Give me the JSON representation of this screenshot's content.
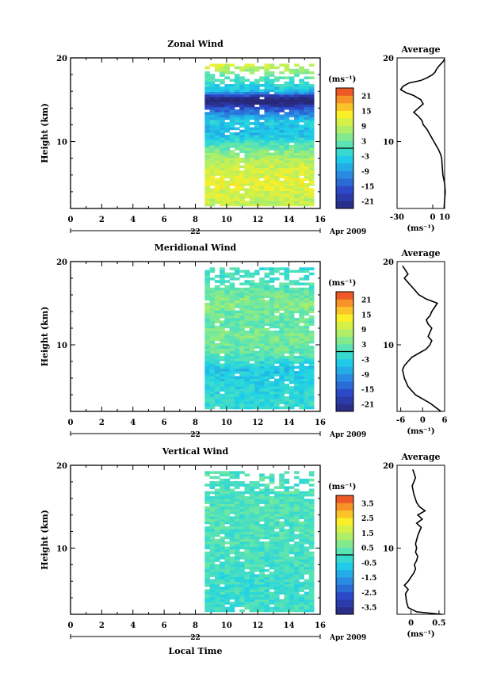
{
  "chart_data": [
    {
      "type": "heatmap",
      "title": "Zonal Wind",
      "ylabel": "Height (km)",
      "ylim": [
        2,
        20
      ],
      "y_ticks": [
        "20",
        "10"
      ],
      "xlim": [
        0,
        16
      ],
      "x_ticks": [
        "0",
        "2",
        "4",
        "6",
        "8",
        "10",
        "12",
        "14",
        "16"
      ],
      "date_day": "22",
      "date_label": "Apr 2009",
      "data_time_range": [
        8.6,
        15.6
      ],
      "colorbar": {
        "unit_label": "(ms⁻¹)",
        "range": [
          -24,
          24
        ],
        "tick_labels": [
          "21",
          "15",
          "9",
          "3",
          "-3",
          "-9",
          "-15",
          "-21"
        ],
        "tick_values": [
          21,
          15,
          9,
          3,
          -3,
          -9,
          -15,
          -21
        ]
      },
      "profile_by_height": [
        {
          "h": 3,
          "v": 9
        },
        {
          "h": 5,
          "v": 12
        },
        {
          "h": 7,
          "v": 10
        },
        {
          "h": 9,
          "v": 4
        },
        {
          "h": 11,
          "v": -6
        },
        {
          "h": 12.5,
          "v": -4
        },
        {
          "h": 14,
          "v": -16
        },
        {
          "h": 15,
          "v": -28
        },
        {
          "h": 16,
          "v": -6
        },
        {
          "h": 18,
          "v": 3
        },
        {
          "h": 19,
          "v": 10
        }
      ],
      "profile_panel": {
        "title": "Average",
        "xlim": [
          -30,
          10
        ],
        "x_ticks": [
          "-30",
          "0",
          "10"
        ],
        "y_ticks": [
          "20",
          "10"
        ],
        "xlabel": "(ms⁻¹)",
        "series": [
          {
            "x": [
              9.5,
              10,
              10.5,
              10,
              8.5,
              8,
              7.5,
              6.5,
              5,
              3,
              1,
              -1,
              -3,
              -5,
              -8,
              -9,
              -12,
              -16,
              -12,
              -8,
              -10,
              -16,
              -22,
              -27,
              -25,
              -20,
              -10,
              -5,
              0,
              2,
              3,
              5,
              7,
              9,
              10
            ],
            "y": [
              2,
              3,
              4,
              5,
              6,
              7,
              8,
              8.5,
              9,
              9.5,
              10,
              10.5,
              11,
              11.5,
              12,
              12.5,
              13,
              13.5,
              14,
              14.5,
              15,
              15.5,
              15.8,
              16.2,
              16.6,
              17,
              17.3,
              17.6,
              18,
              18.3,
              18.6,
              19,
              19.3,
              19.6,
              19.9
            ]
          }
        ]
      }
    },
    {
      "type": "heatmap",
      "title": "Meridional Wind",
      "ylabel": "Height (km)",
      "ylim": [
        2,
        20
      ],
      "y_ticks": [
        "20",
        "10"
      ],
      "xlim": [
        0,
        16
      ],
      "x_ticks": [
        "0",
        "2",
        "4",
        "6",
        "8",
        "10",
        "12",
        "14",
        "16"
      ],
      "date_day": "22",
      "date_label": "Apr 2009",
      "data_time_range": [
        8.6,
        15.6
      ],
      "colorbar": {
        "unit_label": "(ms⁻¹)",
        "range": [
          -24,
          24
        ],
        "tick_labels": [
          "21",
          "15",
          "9",
          "3",
          "-3",
          "-9",
          "-15",
          "-21"
        ],
        "tick_values": [
          21,
          15,
          9,
          3,
          -3,
          -9,
          -15,
          -21
        ]
      },
      "profile_by_height": [
        {
          "h": 3,
          "v": -2
        },
        {
          "h": 5,
          "v": -3
        },
        {
          "h": 7,
          "v": -5
        },
        {
          "h": 9,
          "v": 2
        },
        {
          "h": 11,
          "v": 4
        },
        {
          "h": 13,
          "v": 2
        },
        {
          "h": 15,
          "v": 5
        },
        {
          "h": 17,
          "v": 1
        },
        {
          "h": 19,
          "v": -1
        }
      ],
      "profile_panel": {
        "title": "Average",
        "xlim": [
          -7,
          6
        ],
        "x_ticks": [
          "-6",
          "0",
          "6"
        ],
        "y_ticks": [
          "20",
          "10"
        ],
        "xlabel": "(ms⁻¹)",
        "series": [
          {
            "x": [
              5,
              3.5,
              2,
              0,
              -2,
              -3,
              -4,
              -4.5,
              -5,
              -5.5,
              -5,
              -4,
              -3,
              -1,
              1,
              2,
              2.5,
              1.5,
              2,
              2.5,
              1.5,
              1,
              2,
              2.5,
              4,
              1,
              -1,
              -2,
              -3,
              -4,
              -5,
              -4,
              -5.5
            ],
            "y": [
              2,
              2.5,
              3,
              3.5,
              4,
              4.5,
              5,
              5.5,
              6,
              7,
              7.5,
              8,
              8.5,
              9,
              9.5,
              10,
              10.5,
              11,
              11.5,
              12,
              12.5,
              13,
              13.5,
              14,
              15,
              15.5,
              16,
              16.5,
              17,
              17.5,
              18,
              18.5,
              19.5
            ]
          }
        ]
      }
    },
    {
      "type": "heatmap",
      "title": "Vertical Wind",
      "ylabel": "Height (km)",
      "ylim": [
        2,
        20
      ],
      "y_ticks": [
        "20",
        "10"
      ],
      "xlim": [
        0,
        16
      ],
      "x_ticks": [
        "0",
        "2",
        "4",
        "6",
        "8",
        "10",
        "12",
        "14",
        "16"
      ],
      "xlabel": "Local Time",
      "date_day": "22",
      "date_label": "Apr 2009",
      "data_time_range": [
        8.6,
        15.6
      ],
      "colorbar": {
        "unit_label": "(ms⁻¹)",
        "range": [
          -4,
          4
        ],
        "tick_labels": [
          "3.5",
          "2.5",
          "1.5",
          "0.5",
          "-0.5",
          "-1.5",
          "-2.5",
          "-3.5"
        ],
        "tick_values": [
          3.5,
          2.5,
          1.5,
          0.5,
          -0.5,
          -1.5,
          -2.5,
          -3.5
        ]
      },
      "profile_by_height": [
        {
          "h": 3,
          "v": -0.1
        },
        {
          "h": 6,
          "v": -0.2
        },
        {
          "h": 9,
          "v": 0.05
        },
        {
          "h": 12,
          "v": 0.1
        },
        {
          "h": 15,
          "v": 0.15
        },
        {
          "h": 18,
          "v": 0.05
        }
      ],
      "profile_panel": {
        "title": "Average",
        "xlim": [
          -0.25,
          0.6
        ],
        "x_ticks": [
          "0",
          "0.5"
        ],
        "y_ticks": [
          "20",
          "10"
        ],
        "xlabel": "(ms⁻¹)",
        "series": [
          {
            "x": [
              0.55,
              0.1,
              -0.05,
              -0.08,
              -0.1,
              -0.05,
              -0.12,
              -0.05,
              0,
              0.05,
              0.08,
              0.06,
              0.1,
              0.12,
              0.08,
              0.1,
              0.08,
              0.1,
              0.12,
              0.15,
              0.18,
              0.1,
              0.2,
              0.12,
              0.25,
              0.15,
              0.1,
              0.05,
              0.02,
              0.08,
              0.03
            ],
            "y": [
              2,
              2.3,
              2.8,
              3.5,
              4.5,
              5,
              5.5,
              6,
              6.5,
              7,
              7.5,
              8,
              8.5,
              9,
              9.5,
              10,
              10.5,
              11,
              11.5,
              12,
              12.5,
              13,
              13.5,
              14,
              14.5,
              15,
              15.5,
              16.5,
              17.5,
              18.5,
              19.5
            ]
          }
        ]
      }
    }
  ]
}
